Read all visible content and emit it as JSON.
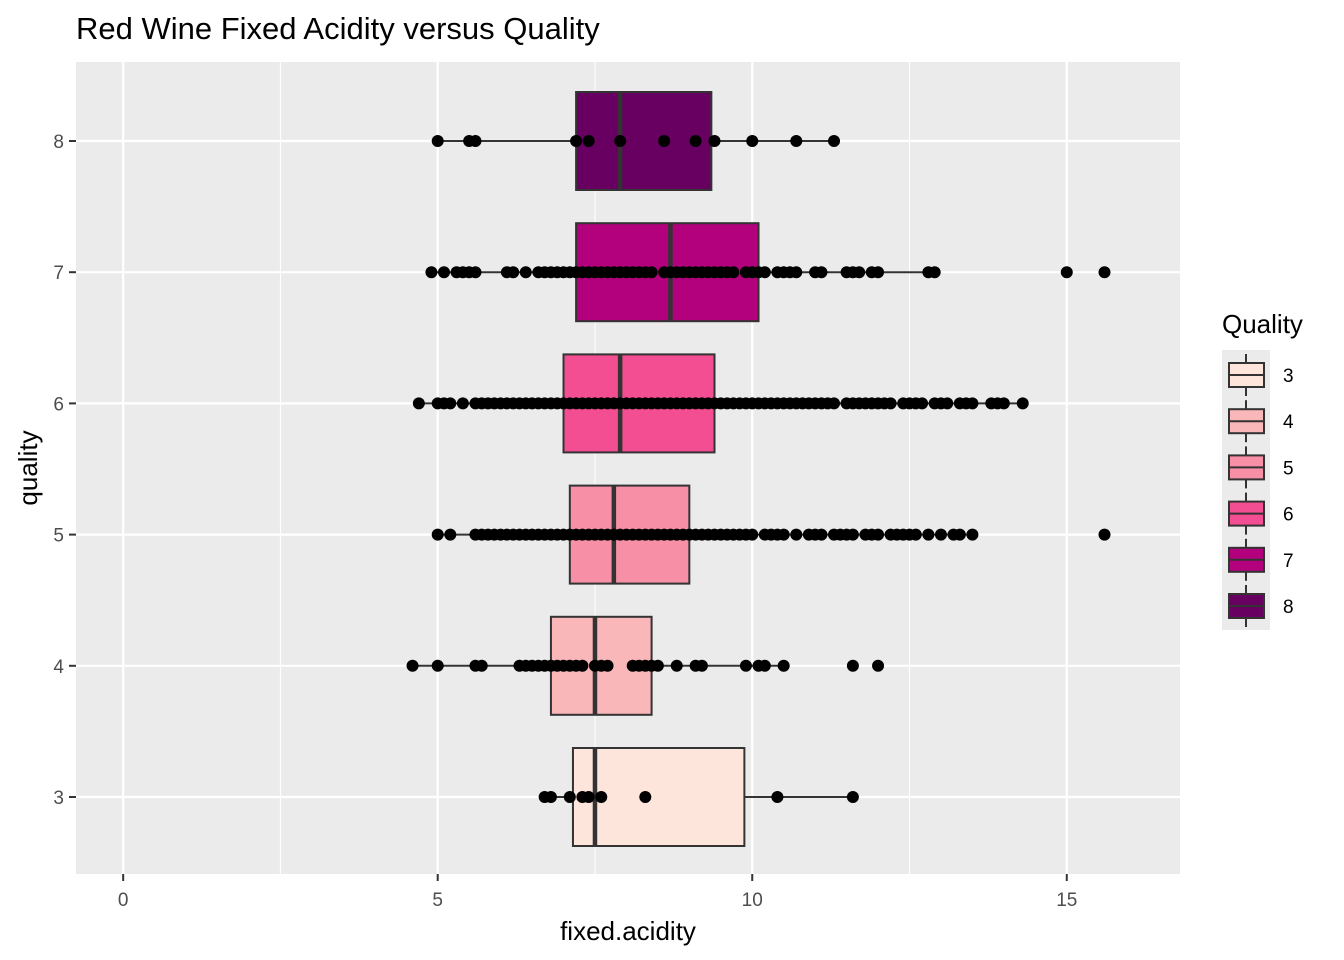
{
  "chart_data": {
    "type": "boxplot",
    "orientation": "horizontal",
    "title": "Red Wine Fixed Acidity versus Quality",
    "xlabel": "fixed.acidity",
    "ylabel": "quality",
    "xlim": [
      -0.75,
      16.8
    ],
    "x_ticks": [
      0,
      5,
      10,
      15
    ],
    "x_tick_labels": [
      "0",
      "5",
      "10",
      "15"
    ],
    "categories": [
      "3",
      "4",
      "5",
      "6",
      "7",
      "8"
    ],
    "grid": true,
    "legend": {
      "title": "Quality",
      "position": "right",
      "entries": [
        "3",
        "4",
        "5",
        "6",
        "7",
        "8"
      ]
    },
    "series": [
      {
        "category": "3",
        "color": "#fde5dc",
        "q1": 7.15,
        "median": 7.5,
        "q3": 9.875,
        "whisker_low": 6.7,
        "whisker_high": 11.6,
        "points": [
          6.7,
          6.8,
          7.1,
          7.3,
          7.4,
          7.6,
          8.3,
          10.4,
          11.6
        ]
      },
      {
        "category": "4",
        "color": "#fab7b9",
        "q1": 6.8,
        "median": 7.5,
        "q3": 8.4,
        "whisker_low": 4.6,
        "whisker_high": 10.5,
        "points": [
          4.6,
          5.0,
          5.6,
          5.7,
          6.3,
          6.4,
          6.5,
          6.6,
          6.7,
          6.8,
          6.9,
          7.0,
          7.1,
          7.2,
          7.3,
          7.5,
          7.6,
          7.7,
          8.1,
          8.2,
          8.3,
          8.4,
          8.5,
          8.8,
          9.1,
          9.2,
          9.9,
          10.1,
          10.2,
          10.5,
          11.6,
          12.0
        ]
      },
      {
        "category": "5",
        "color": "#f78fa7",
        "q1": 7.1,
        "median": 7.8,
        "q3": 9.0,
        "whisker_low": 5.0,
        "whisker_high": 13.5,
        "points": [
          5.0,
          5.2,
          5.6,
          5.7,
          5.8,
          5.9,
          6.0,
          6.1,
          6.2,
          6.3,
          6.4,
          6.5,
          6.6,
          6.7,
          6.8,
          6.9,
          7.0,
          7.1,
          7.2,
          7.3,
          7.4,
          7.5,
          7.6,
          7.7,
          7.8,
          7.9,
          8.0,
          8.1,
          8.2,
          8.3,
          8.4,
          8.5,
          8.6,
          8.7,
          8.8,
          8.9,
          9.0,
          9.1,
          9.2,
          9.3,
          9.4,
          9.5,
          9.6,
          9.7,
          9.8,
          9.9,
          10.0,
          10.2,
          10.3,
          10.4,
          10.5,
          10.7,
          10.9,
          11.0,
          11.1,
          11.3,
          11.4,
          11.5,
          11.6,
          11.8,
          11.9,
          12.0,
          12.2,
          12.3,
          12.4,
          12.5,
          12.6,
          12.8,
          13.0,
          13.2,
          13.3,
          13.5,
          15.6
        ]
      },
      {
        "category": "6",
        "color": "#f34e91",
        "q1": 7.0,
        "median": 7.9,
        "q3": 9.4,
        "whisker_low": 4.7,
        "whisker_high": 14.3,
        "points": [
          4.7,
          5.0,
          5.1,
          5.2,
          5.4,
          5.6,
          5.7,
          5.8,
          5.9,
          6.0,
          6.1,
          6.2,
          6.3,
          6.4,
          6.5,
          6.6,
          6.7,
          6.8,
          6.9,
          7.0,
          7.1,
          7.2,
          7.3,
          7.4,
          7.5,
          7.6,
          7.7,
          7.8,
          7.9,
          8.0,
          8.1,
          8.2,
          8.3,
          8.4,
          8.5,
          8.6,
          8.7,
          8.8,
          8.9,
          9.0,
          9.1,
          9.2,
          9.3,
          9.4,
          9.5,
          9.6,
          9.7,
          9.8,
          9.9,
          10.0,
          10.1,
          10.2,
          10.3,
          10.4,
          10.5,
          10.6,
          10.7,
          10.8,
          10.9,
          11.0,
          11.1,
          11.2,
          11.3,
          11.5,
          11.6,
          11.7,
          11.8,
          11.9,
          12.0,
          12.1,
          12.2,
          12.4,
          12.5,
          12.6,
          12.7,
          12.9,
          13.0,
          13.1,
          13.3,
          13.4,
          13.5,
          13.8,
          13.9,
          14.0,
          14.3
        ]
      },
      {
        "category": "7",
        "color": "#b3007d",
        "q1": 7.2,
        "median": 8.7,
        "q3": 10.1,
        "whisker_low": 4.9,
        "whisker_high": 12.9,
        "points": [
          4.9,
          5.1,
          5.3,
          5.4,
          5.5,
          5.6,
          6.1,
          6.2,
          6.4,
          6.6,
          6.7,
          6.8,
          6.9,
          7.0,
          7.1,
          7.2,
          7.3,
          7.4,
          7.5,
          7.6,
          7.7,
          7.8,
          7.9,
          8.0,
          8.1,
          8.2,
          8.3,
          8.4,
          8.6,
          8.7,
          8.8,
          8.9,
          9.0,
          9.1,
          9.2,
          9.3,
          9.4,
          9.5,
          9.6,
          9.7,
          9.9,
          10.0,
          10.1,
          10.2,
          10.4,
          10.5,
          10.6,
          10.7,
          11.0,
          11.1,
          11.5,
          11.6,
          11.7,
          11.9,
          12.0,
          12.8,
          12.9,
          15.0,
          15.6
        ]
      },
      {
        "category": "8",
        "color": "#670061",
        "q1": 7.2,
        "median": 7.9,
        "q3": 9.35,
        "whisker_low": 5.0,
        "whisker_high": 11.3,
        "points": [
          5.0,
          5.5,
          5.6,
          7.2,
          7.4,
          7.9,
          8.6,
          9.1,
          9.4,
          10.0,
          10.7,
          11.3
        ]
      }
    ]
  }
}
